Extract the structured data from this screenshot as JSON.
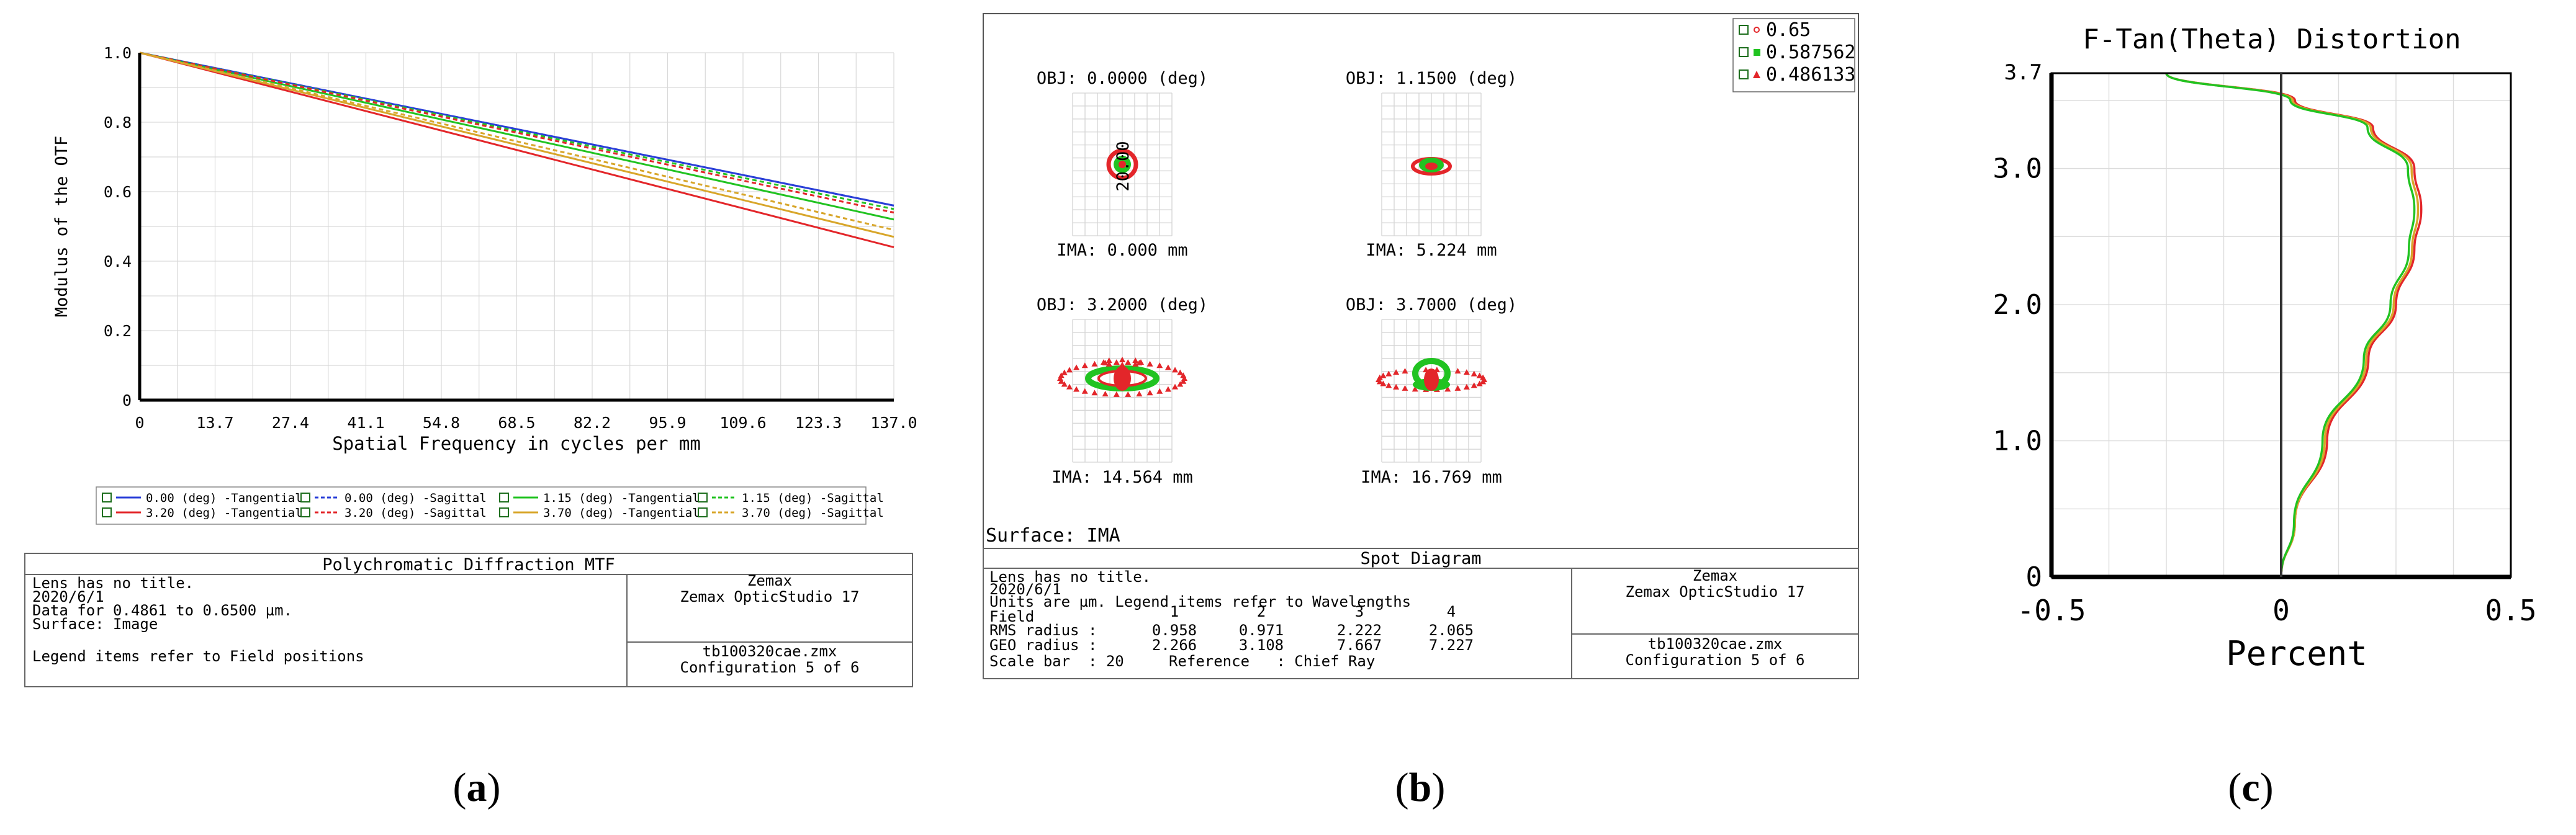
{
  "captions": [
    "a",
    "b",
    "c"
  ],
  "mtf": {
    "info": {
      "title": "Polychromatic Diffraction MTF",
      "lines": [
        "Lens has no title.",
        "2020/6/1",
        "Data for 0.4861 to 0.6500 µm.",
        "Surface: Image"
      ],
      "legend_note": "Legend items refer to Field positions",
      "company": "Zemax",
      "product": "Zemax OpticStudio 17",
      "file": "tb100320cae.zmx",
      "config": "Configuration 5 of 6"
    }
  },
  "spot": {
    "fields": [
      {
        "obj": "OBJ: 0.0000 (deg)",
        "ima": "IMA: 0.000 mm"
      },
      {
        "obj": "OBJ: 1.1500 (deg)",
        "ima": "IMA: 5.224 mm"
      },
      {
        "obj": "OBJ: 3.2000 (deg)",
        "ima": "IMA: 14.564 mm"
      },
      {
        "obj": "OBJ: 3.7000 (deg)",
        "ima": "IMA: 16.769 mm"
      }
    ],
    "scale_label": "20.00",
    "legend": [
      "0.65",
      "0.587562",
      "0.486133"
    ],
    "surface": "Surface: IMA",
    "info": {
      "title": "Spot Diagram",
      "lines": [
        "Lens has no title.",
        "2020/6/1",
        "Units are µm. Legend items refer to Wavelengths"
      ],
      "field_label": "Field",
      "field_vals": [
        "1",
        "2",
        "3",
        "4"
      ],
      "rms_label": "RMS radius :",
      "rms_vals": [
        "0.958",
        "0.971",
        "2.222",
        "2.065"
      ],
      "geo_label": "GEO radius :",
      "geo_vals": [
        "2.266",
        "3.108",
        "7.667",
        "7.227"
      ],
      "scale_line": "Scale bar  : 20     Reference   : Chief Ray",
      "company": "Zemax",
      "product": "Zemax OpticStudio 17",
      "file": "tb100320cae.zmx",
      "config": "Configuration 5 of 6"
    }
  },
  "colors": {
    "red": "#e3262a",
    "green": "#21c321",
    "blue": "#2a3fd8",
    "gold": "#d8a62a"
  },
  "chart_data": [
    {
      "type": "line",
      "title": "",
      "xlabel": "Spatial Frequency in cycles per mm",
      "ylabel": "Modulus of the OTF",
      "xlim": [
        0,
        137.0
      ],
      "ylim": [
        0,
        1.0
      ],
      "xticks": [
        "0",
        "13.7",
        "27.4",
        "41.1",
        "54.8",
        "68.5",
        "82.2",
        "95.9",
        "109.6",
        "123.3",
        "137.0"
      ],
      "yticks": [
        "0",
        "0.2",
        "0.4",
        "0.6",
        "0.8",
        "1.0"
      ],
      "grid": true,
      "legend_position": "bottom",
      "series": [
        {
          "name": "0.00 (deg) -Tangential",
          "color": "#2a3fd8",
          "dash": false,
          "x": [
            0,
            137
          ],
          "y": [
            1.0,
            0.56
          ]
        },
        {
          "name": "0.00 (deg) -Sagittal",
          "color": "#2a3fd8",
          "dash": true,
          "x": [
            0,
            137
          ],
          "y": [
            1.0,
            0.56
          ]
        },
        {
          "name": "1.15 (deg) -Tangential",
          "color": "#21c321",
          "dash": false,
          "x": [
            0,
            137
          ],
          "y": [
            1.0,
            0.52
          ]
        },
        {
          "name": "1.15 (deg) -Sagittal",
          "color": "#21c321",
          "dash": true,
          "x": [
            0,
            137
          ],
          "y": [
            1.0,
            0.55
          ]
        },
        {
          "name": "3.20 (deg) -Tangential",
          "color": "#e3262a",
          "dash": false,
          "x": [
            0,
            137
          ],
          "y": [
            1.0,
            0.44
          ]
        },
        {
          "name": "3.20 (deg) -Sagittal",
          "color": "#e3262a",
          "dash": true,
          "x": [
            0,
            137
          ],
          "y": [
            1.0,
            0.54
          ]
        },
        {
          "name": "3.70 (deg) -Tangential",
          "color": "#d8a62a",
          "dash": false,
          "x": [
            0,
            137
          ],
          "y": [
            1.0,
            0.47
          ]
        },
        {
          "name": "3.70 (deg) -Sagittal",
          "color": "#d8a62a",
          "dash": true,
          "x": [
            0,
            137
          ],
          "y": [
            1.0,
            0.49
          ]
        }
      ]
    },
    {
      "type": "line",
      "title": "F-Tan(Theta) Distortion",
      "xlabel": "Percent",
      "ylabel": "",
      "xlim": [
        -0.5,
        0.5
      ],
      "ylim": [
        0,
        3.7
      ],
      "xticks": [
        "-0.5",
        "0",
        "0.5"
      ],
      "yticks": [
        "0",
        "1.0",
        "2.0",
        "3.0",
        "3.7"
      ],
      "grid": true,
      "series": [
        {
          "name": "0.65",
          "color": "#e3262a",
          "x": [
            0.0,
            0.03,
            0.1,
            0.19,
            0.25,
            0.29,
            0.305,
            0.29,
            0.2,
            0.03,
            -0.25
          ],
          "y": [
            0.0,
            0.4,
            1.0,
            1.6,
            2.0,
            2.4,
            2.7,
            3.0,
            3.3,
            3.5,
            3.7
          ]
        },
        {
          "name": "0.587562",
          "color": "#d8a62a",
          "x": [
            0.0,
            0.03,
            0.095,
            0.185,
            0.245,
            0.285,
            0.298,
            0.284,
            0.195,
            0.025,
            -0.25
          ],
          "y": [
            0.0,
            0.4,
            1.0,
            1.6,
            2.0,
            2.4,
            2.7,
            3.0,
            3.3,
            3.5,
            3.7
          ]
        },
        {
          "name": "0.486133",
          "color": "#21c321",
          "x": [
            0.0,
            0.028,
            0.09,
            0.18,
            0.238,
            0.278,
            0.29,
            0.276,
            0.188,
            0.02,
            -0.25
          ],
          "y": [
            0.0,
            0.4,
            1.0,
            1.6,
            2.0,
            2.4,
            2.7,
            3.0,
            3.3,
            3.5,
            3.7
          ]
        }
      ]
    }
  ]
}
